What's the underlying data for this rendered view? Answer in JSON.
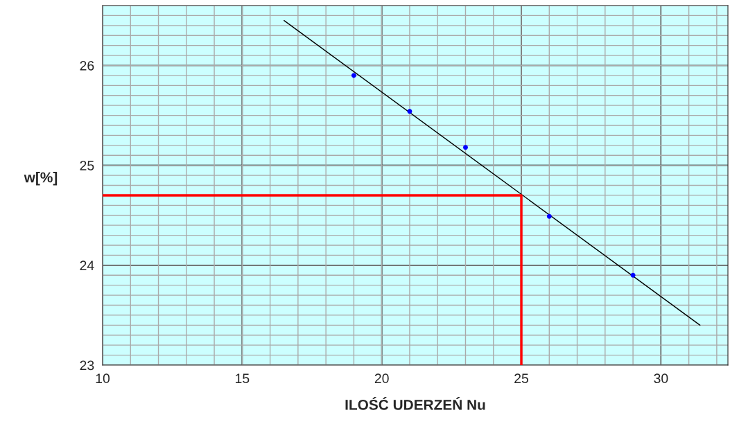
{
  "chart_data": {
    "type": "scatter",
    "xlabel": "ILOŚĆ UDERZEŃ Nu",
    "ylabel": "w[%]",
    "xlim": [
      10,
      32.4
    ],
    "xticks": [
      10,
      15,
      20,
      25,
      30
    ],
    "ylim": [
      23,
      26.6
    ],
    "yticks": [
      23,
      24,
      25,
      26
    ],
    "grid": true,
    "legend": false,
    "series": [
      {
        "type": "line",
        "color": "#000000",
        "x": [
          16.5,
          31.4
        ],
        "values": [
          26.45,
          23.4
        ],
        "marker": "none"
      },
      {
        "type": "line",
        "color": "#ff0000",
        "x": [
          10,
          25,
          25
        ],
        "values": [
          24.7,
          24.7,
          23
        ],
        "marker": "none"
      },
      {
        "color": "#0000ff",
        "x": [
          19,
          21,
          23,
          26,
          29
        ],
        "values": [
          25.9,
          25.54,
          25.18,
          24.49,
          23.9
        ],
        "marker": "circle"
      }
    ]
  }
}
